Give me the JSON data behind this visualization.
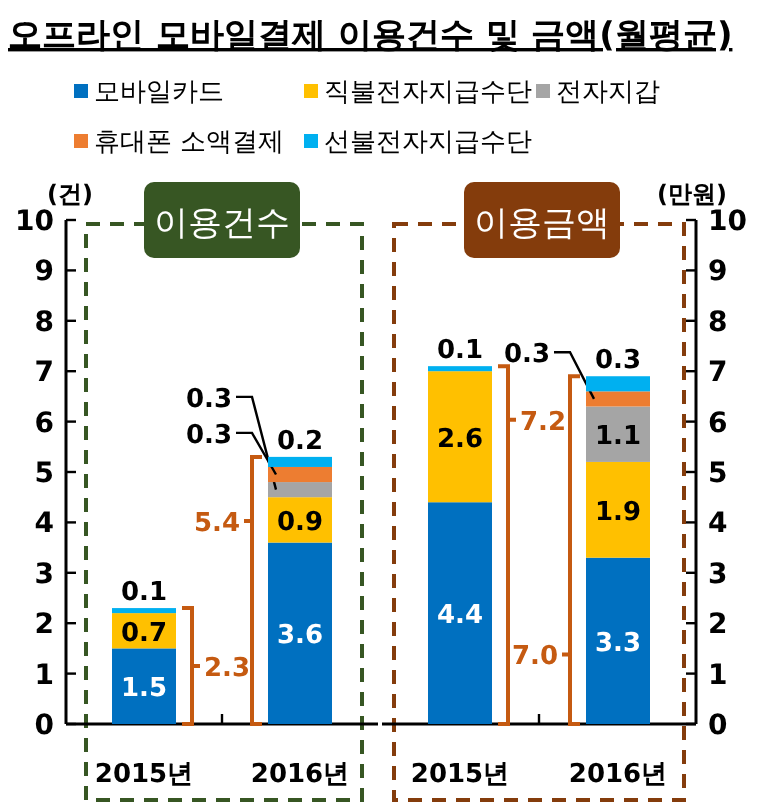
{
  "chart_data": [
    {
      "type": "bar",
      "stacked": true,
      "title": "오프라인 모바일결제 이용건수 및 금액(월평균)",
      "subtitle": "이용건수",
      "ylabel": "(건)",
      "categories": [
        "2015년",
        "2016년"
      ],
      "ylim": [
        0,
        10
      ],
      "yticks": [
        0,
        1,
        2,
        3,
        4,
        5,
        6,
        7,
        8,
        9,
        10
      ],
      "data_labels": true,
      "totals": [
        "2.3",
        "5.4"
      ],
      "legend": "top",
      "series": [
        {
          "name": "모바일카드",
          "color": "#0070c0",
          "values": [
            1.5,
            3.6
          ]
        },
        {
          "name": "직불전자지급수단",
          "color": "#ffc000",
          "values": [
            0.7,
            0.9
          ]
        },
        {
          "name": "전자지갑",
          "color": "#a5a5a5",
          "values": [
            null,
            0.3
          ]
        },
        {
          "name": "휴대폰 소액결제",
          "color": "#ed7d31",
          "values": [
            null,
            0.3
          ]
        },
        {
          "name": "선불전자지급수단",
          "color": "#00b0f0",
          "values": [
            0.1,
            0.2
          ]
        }
      ]
    },
    {
      "type": "bar",
      "stacked": true,
      "title": "이용금액",
      "y2label": "(만원)",
      "categories": [
        "2015년",
        "2016년"
      ],
      "y2lim": [
        0,
        10
      ],
      "y2ticks": [
        0,
        1,
        2,
        3,
        4,
        5,
        6,
        7,
        8,
        9,
        10
      ],
      "data_labels": true,
      "totals": [
        "7.2",
        "7.0"
      ],
      "series": [
        {
          "color": "#0070c0",
          "axis": "y2",
          "values": [
            4.4,
            3.3
          ]
        },
        {
          "color": "#ffc000",
          "axis": "y2",
          "values": [
            2.6,
            1.9
          ]
        },
        {
          "color": "#a5a5a5",
          "axis": "y2",
          "values": [
            null,
            1.1
          ]
        },
        {
          "color": "#ed7d31",
          "axis": "y2",
          "values": [
            null,
            0.3
          ]
        },
        {
          "color": "#00b0f0",
          "axis": "y2",
          "values": [
            0.1,
            0.3
          ]
        }
      ]
    }
  ]
}
